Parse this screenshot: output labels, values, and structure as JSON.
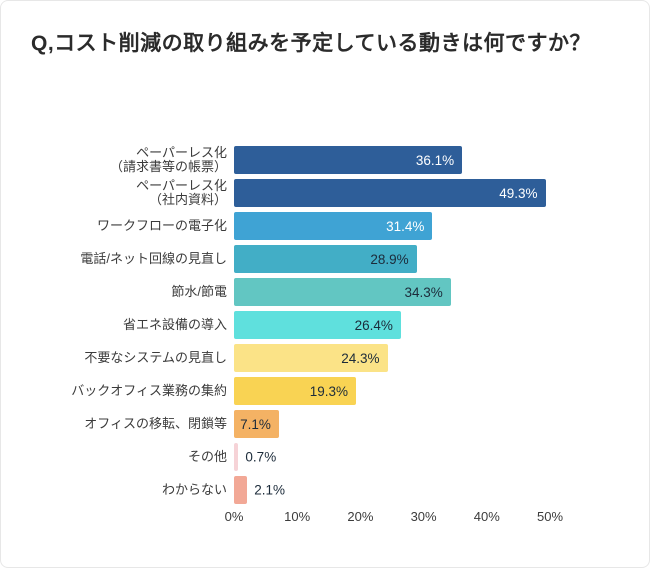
{
  "title": "Q,コスト削減の取り組みを予定している動きは何ですか？",
  "chart_data": {
    "type": "bar",
    "orientation": "horizontal",
    "title": "Q,コスト削減の取り組みを予定している動きは何ですか？",
    "categories": [
      "ペーパーレス化\n（請求書等の帳票）",
      "ペーパーレス化\n（社内資料）",
      "ワークフローの電子化",
      "電話/ネット回線の見直し",
      "節水/節電",
      "省エネ設備の導入",
      "不要なシステムの見直し",
      "バックオフィス業務の集約",
      "オフィスの移転、閉鎖等",
      "その他",
      "わからない"
    ],
    "values": [
      36.1,
      49.3,
      31.4,
      28.9,
      34.3,
      26.4,
      24.3,
      19.3,
      7.1,
      0.7,
      2.1
    ],
    "value_labels": [
      "36.1%",
      "49.3%",
      "31.4%",
      "28.9%",
      "34.3%",
      "26.4%",
      "24.3%",
      "19.3%",
      "7.1%",
      "0.7%",
      "2.1%"
    ],
    "bar_colors": [
      "#2e5e99",
      "#2e5e99",
      "#3fa3d4",
      "#42aec6",
      "#62c6c2",
      "#5fe0dd",
      "#fbe387",
      "#f9d353",
      "#f4b264",
      "#f6d3d7",
      "#f2a896"
    ],
    "value_label_colors": [
      "#ffffff",
      "#ffffff",
      "#ffffff",
      "#1c2b3a",
      "#1c2b3a",
      "#1c2b3a",
      "#1c2b3a",
      "#1c2b3a",
      "#1c2b3a",
      "#1c2b3a",
      "#1c2b3a"
    ],
    "value_label_inside": [
      true,
      true,
      true,
      true,
      true,
      true,
      true,
      true,
      true,
      false,
      false
    ],
    "x_ticks": [
      "0%",
      "10%",
      "20%",
      "30%",
      "40%",
      "50%"
    ],
    "xlim": [
      0,
      50
    ],
    "xlabel": "",
    "ylabel": "",
    "grid": false,
    "legend": "none",
    "background": "#ffffff"
  }
}
